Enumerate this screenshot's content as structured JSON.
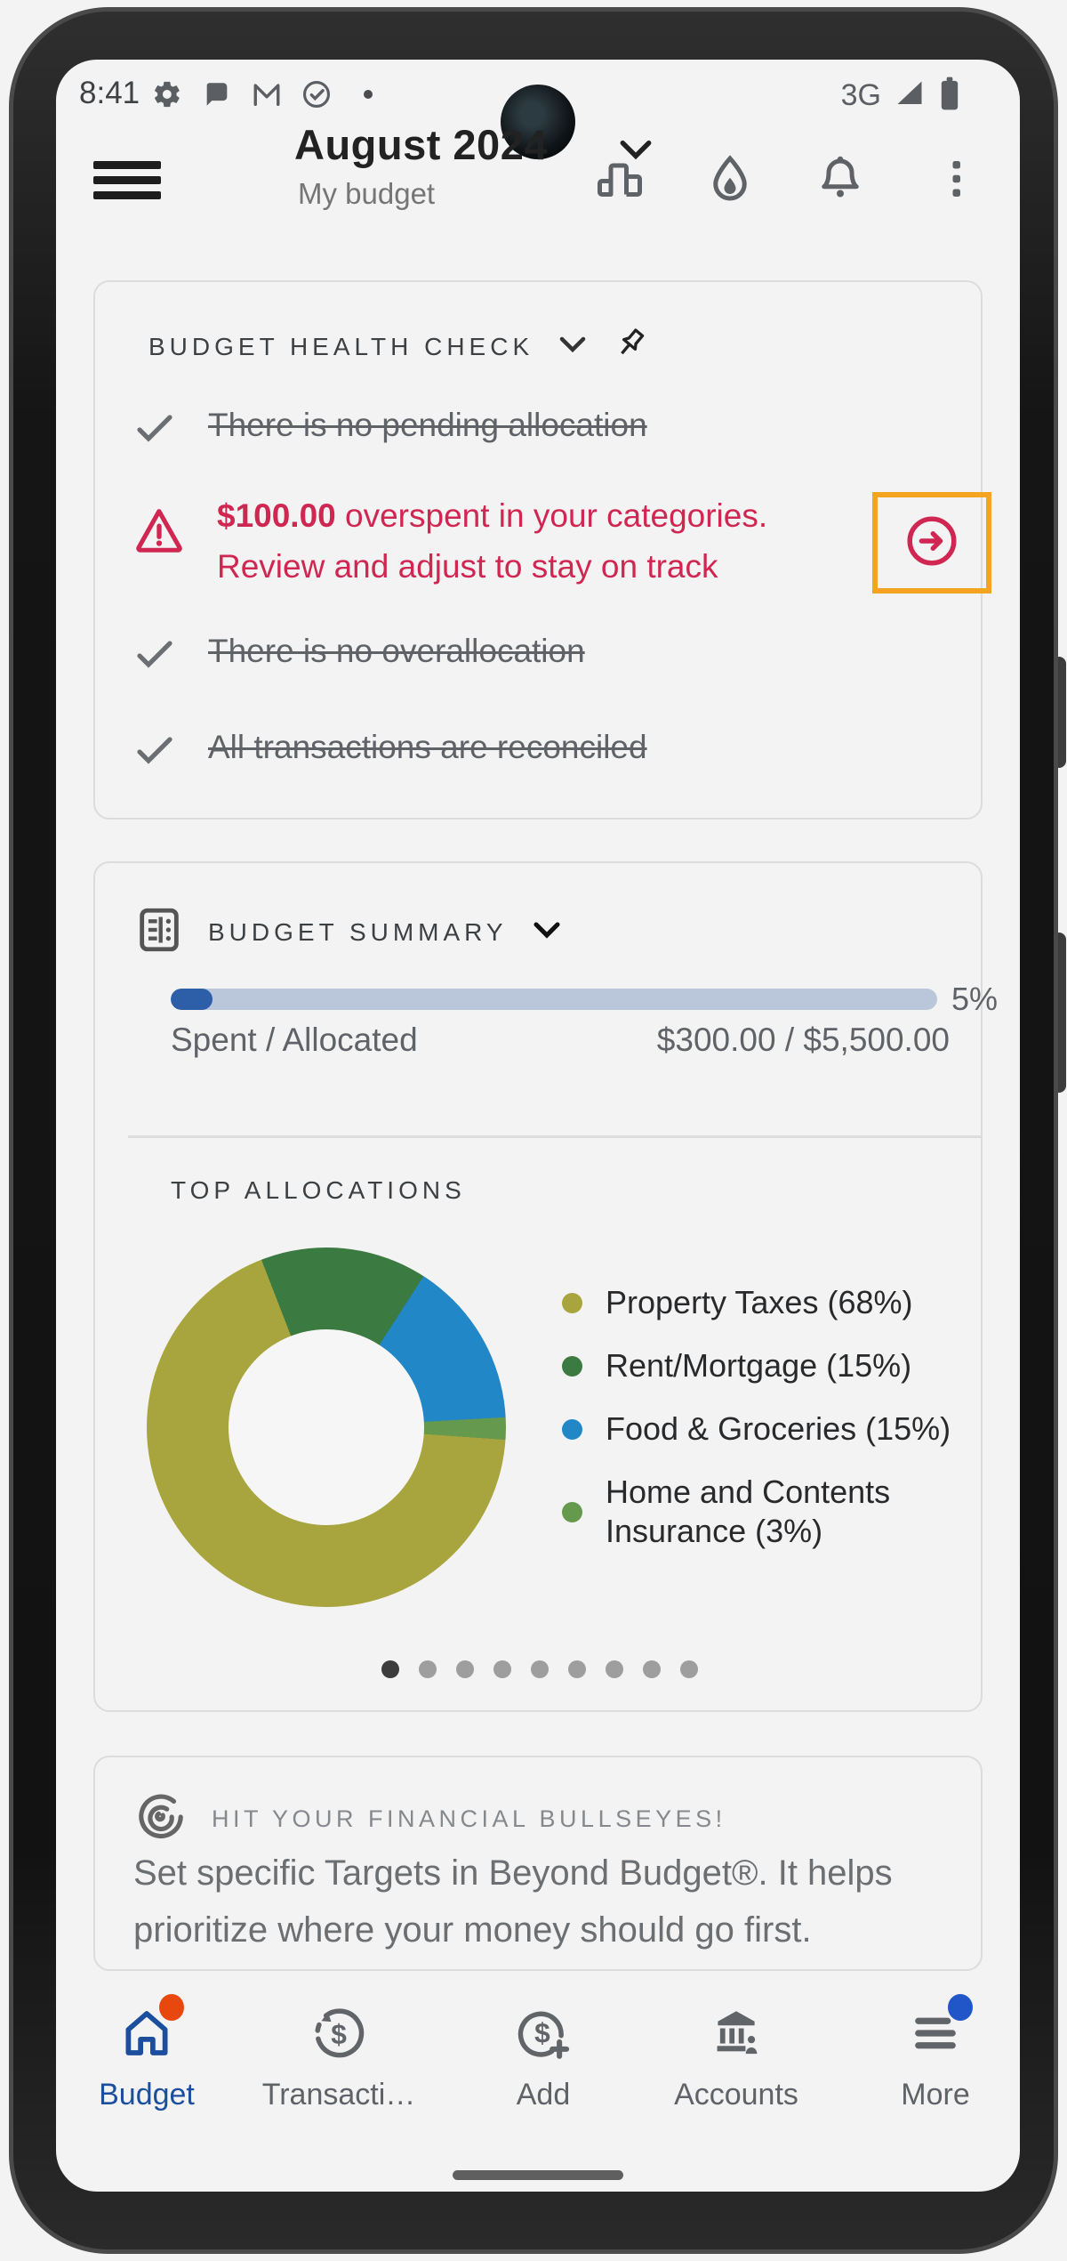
{
  "status_bar": {
    "time": "8:41",
    "network": "3G",
    "left_icons": [
      "settings-gear",
      "chat-bubble",
      "gmail-m",
      "task-check",
      "notification-dot"
    ],
    "right_icons": [
      "signal-full",
      "battery-full"
    ]
  },
  "header": {
    "title": "August 2024",
    "subtitle": "My budget",
    "action_icons": [
      "leaderboard",
      "water-drop",
      "notifications-bell",
      "kebab-menu"
    ]
  },
  "health_check": {
    "title": "BUDGET HEALTH CHECK",
    "checks": [
      "There is no pending allocation",
      "There is no overallocation",
      "All transactions are reconciled"
    ],
    "alert": {
      "amount": "$100.00",
      "text_line1": " overspent in your categories.",
      "text_line2": "Review and adjust to stay on track",
      "accent_color": "#d02752",
      "highlight_color": "#f5a41f"
    }
  },
  "budget_summary": {
    "title": "BUDGET SUMMARY",
    "progress_pct": 5.5,
    "progress_label": "5%",
    "spent_label": "Spent / Allocated",
    "spent_value": "$300.00 / $5,500.00",
    "bar_fill_color": "#2d5fa8",
    "bar_track_color": "#bac7db"
  },
  "top_allocations_label": "TOP ALLOCATIONS",
  "chart_data": {
    "type": "pie",
    "donut": true,
    "title": "TOP ALLOCATIONS",
    "start_angle_deg": 94,
    "legend_position": "right",
    "segments": [
      {
        "name": "Property Taxes",
        "label": "Property Taxes (68%)",
        "value": 68,
        "color": "#a9a53e"
      },
      {
        "name": "Rent/Mortgage",
        "label": "Rent/Mortgage (15%)",
        "value": 15,
        "color": "#3b7a40"
      },
      {
        "name": "Food & Groceries",
        "label": "Food & Groceries (15%)",
        "value": 15,
        "color": "#2187c7"
      },
      {
        "name": "Home and Contents Insurance",
        "label": "Home and Contents Insurance (3%)",
        "value": 3,
        "color": "#64994e"
      }
    ]
  },
  "carousel": {
    "dot_count": 9,
    "active_index": 0
  },
  "tip_card": {
    "title": "HIT YOUR FINANCIAL BULLSEYES!",
    "body": "Set specific Targets in Beyond Budget®. It helps prioritize where your money should go first."
  },
  "bottom_nav": {
    "active_color": "#1b4f9e",
    "items": [
      {
        "label": "Budget",
        "icon": "home",
        "active": true,
        "badge_color": "#e8480e"
      },
      {
        "label": "Transacti…",
        "icon": "transactions-refresh-dollar",
        "active": false
      },
      {
        "label": "Add",
        "icon": "add-dollar-circle",
        "active": false
      },
      {
        "label": "Accounts",
        "icon": "bank",
        "active": false
      },
      {
        "label": "More",
        "icon": "menu-lines",
        "active": false,
        "badge_color": "#2056c8"
      }
    ]
  }
}
